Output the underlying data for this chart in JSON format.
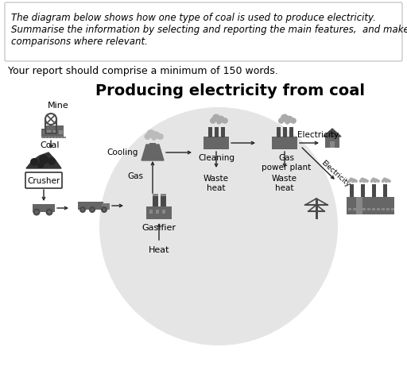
{
  "title": "Producing electricity from coal",
  "instruction_line1": "The diagram below shows how one type of coal is used to produce electricity.",
  "instruction_line2": "Summarise the information by selecting and reporting the main features,  and make",
  "instruction_line3": "comparisons where relevant.",
  "word_count_text": "Your report should comprise a minimum of 150 words.",
  "bg_color": "#ffffff",
  "circle_color": "#e5e5e5",
  "dark_gray": "#4a4a4a",
  "mid_gray": "#666666",
  "light_gray": "#999999",
  "box_border": "#bbbbbb",
  "labels": {
    "mine": "Mine",
    "coal": "Coal",
    "crusher": "Crusher",
    "cooling": "Cooling",
    "cleaning": "Cleaning",
    "gas": "Gas",
    "waste_heat1": "Waste\nheat",
    "gas_power_plant": "Gas\npower plant",
    "waste_heat2": "Waste\nheat",
    "electricity_h": "Electricity",
    "electricity_d": "Electricity",
    "gasifier": "Gasifier",
    "heat": "Heat"
  },
  "title_fontsize": 14,
  "label_fontsize": 7.5,
  "small_label_fontsize": 6.5,
  "instruction_fontsize": 8.5,
  "word_count_fontsize": 9
}
